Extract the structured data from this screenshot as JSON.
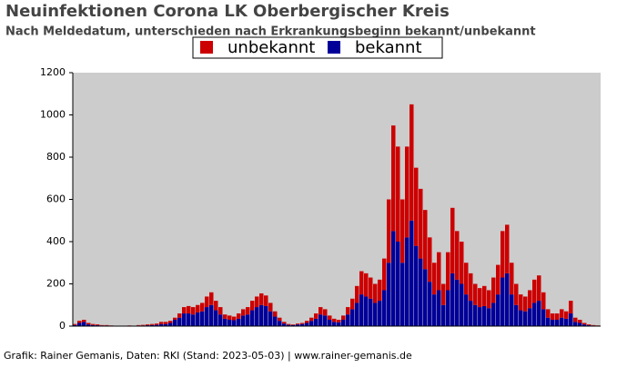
{
  "chart_data": {
    "type": "bar",
    "stacked": true,
    "title": "Neuinfektionen Corona LK Oberbergischer Kreis",
    "subtitle": "Nach Meldedatum, unterschieden nach Erkrankungsbeginn bekannt/unbekannt",
    "footer": "Grafik: Rainer Gemanis, Daten: RKI (Stand: 2023-05-03) | www.rainer-gemanis.de",
    "categories": [
      null,
      null,
      null,
      null,
      null,
      null,
      null,
      null,
      null,
      null,
      null,
      null,
      null,
      null,
      null,
      null,
      null,
      null,
      null,
      null,
      null,
      null,
      null,
      null,
      null,
      null,
      null,
      null,
      null,
      null,
      null,
      null,
      null,
      null,
      null,
      null,
      null,
      null,
      null,
      null,
      null,
      null,
      null,
      null,
      null,
      null,
      null,
      null,
      null,
      null,
      null,
      null,
      null,
      null,
      null,
      null,
      null,
      null,
      null,
      null,
      null,
      null,
      null,
      null,
      null,
      null,
      null,
      null,
      null,
      null,
      null,
      null,
      null,
      null,
      null,
      null,
      null,
      null,
      null,
      null,
      null,
      null,
      null,
      null,
      null,
      null,
      null,
      null,
      null,
      null,
      null,
      null,
      null,
      null,
      null,
      null,
      null,
      null,
      null,
      null,
      null,
      null,
      null,
      null,
      null,
      null,
      null,
      null,
      null,
      null,
      null,
      null,
      null,
      null,
      null,
      null
    ],
    "series": [
      {
        "name": "unbekannt",
        "color": "#cc0000",
        "values": [
          5,
          10,
          10,
          7,
          5,
          4,
          2,
          2,
          1,
          1,
          0,
          1,
          1,
          1,
          2,
          3,
          4,
          5,
          6,
          10,
          10,
          10,
          10,
          20,
          30,
          35,
          35,
          35,
          40,
          50,
          60,
          45,
          35,
          20,
          20,
          17,
          25,
          30,
          35,
          45,
          50,
          55,
          50,
          40,
          25,
          15,
          8,
          4,
          3,
          4,
          5,
          10,
          15,
          25,
          35,
          30,
          20,
          15,
          12,
          20,
          35,
          50,
          80,
          110,
          110,
          100,
          90,
          100,
          150,
          300,
          500,
          450,
          300,
          430,
          550,
          370,
          330,
          280,
          210,
          150,
          180,
          100,
          180,
          310,
          230,
          200,
          150,
          130,
          100,
          90,
          95,
          85,
          120,
          140,
          220,
          230,
          150,
          100,
          75,
          70,
          85,
          110,
          120,
          80,
          40,
          30,
          30,
          40,
          35,
          60,
          20,
          15,
          7,
          4,
          2,
          1
        ]
      },
      {
        "name": "bekannt",
        "color": "#000099",
        "values": [
          5,
          15,
          20,
          8,
          5,
          4,
          3,
          3,
          2,
          1,
          1,
          1,
          2,
          1,
          3,
          3,
          4,
          5,
          6,
          10,
          10,
          15,
          30,
          40,
          60,
          60,
          55,
          65,
          70,
          90,
          100,
          75,
          55,
          35,
          30,
          28,
          35,
          50,
          55,
          75,
          90,
          100,
          95,
          70,
          45,
          25,
          12,
          6,
          5,
          8,
          10,
          15,
          25,
          35,
          55,
          50,
          30,
          20,
          18,
          30,
          55,
          80,
          110,
          150,
          140,
          130,
          110,
          120,
          170,
          300,
          450,
          400,
          300,
          420,
          500,
          380,
          320,
          270,
          210,
          150,
          170,
          100,
          170,
          250,
          220,
          200,
          150,
          120,
          100,
          90,
          95,
          85,
          110,
          150,
          230,
          250,
          150,
          100,
          75,
          70,
          85,
          110,
          120,
          80,
          40,
          30,
          30,
          40,
          35,
          60,
          20,
          15,
          8,
          4,
          3,
          2
        ]
      }
    ],
    "ylim": [
      0,
      1200
    ],
    "yticks": [
      0,
      200,
      400,
      600,
      800,
      1000,
      1200
    ],
    "legend": "top"
  }
}
